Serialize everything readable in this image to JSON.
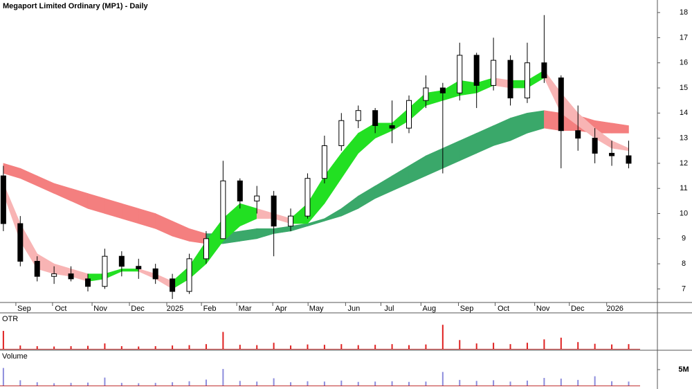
{
  "chart_data": [
    {
      "type": "candlestick",
      "title": "Megaport Limited Ordinary (MP1) - Daily",
      "open": [
        11.5,
        9.6,
        8.1,
        7.5,
        7.6,
        7.4,
        7.1,
        8.3,
        7.9,
        7.8,
        7.4,
        6.9,
        8.2,
        9.0,
        11.3,
        10.5,
        10.7,
        9.5,
        9.9,
        11.4,
        12.7,
        13.7,
        14.1,
        13.5,
        13.4,
        14.5,
        15.0,
        14.8,
        16.3,
        15.1,
        16.1,
        14.6,
        16.0,
        15.4,
        13.3,
        13.0,
        12.4,
        12.3
      ],
      "high": [
        11.9,
        9.9,
        8.3,
        7.9,
        7.9,
        7.6,
        8.6,
        8.5,
        8.2,
        8.0,
        7.6,
        8.4,
        9.3,
        12.1,
        11.4,
        11.1,
        10.9,
        10.2,
        11.6,
        13.1,
        14.0,
        14.3,
        14.2,
        14.5,
        14.7,
        15.5,
        15.2,
        16.8,
        16.4,
        17.0,
        16.3,
        16.8,
        17.9,
        15.5,
        14.3,
        13.4,
        12.9,
        12.9
      ],
      "low": [
        9.3,
        7.9,
        7.3,
        7.2,
        7.3,
        6.9,
        7.0,
        7.5,
        7.4,
        7.2,
        6.6,
        6.8,
        8.0,
        9.0,
        10.2,
        10.0,
        8.3,
        9.3,
        9.8,
        11.2,
        12.5,
        13.4,
        13.2,
        12.8,
        13.2,
        14.2,
        11.6,
        14.5,
        14.2,
        14.9,
        14.3,
        14.4,
        15.2,
        11.8,
        12.5,
        12.0,
        11.9,
        11.8
      ],
      "close": [
        9.6,
        8.1,
        7.5,
        7.6,
        7.4,
        7.1,
        8.3,
        7.9,
        7.8,
        7.4,
        6.9,
        8.2,
        9.0,
        11.3,
        10.5,
        10.7,
        9.5,
        9.9,
        11.4,
        12.7,
        13.7,
        14.1,
        13.5,
        13.4,
        14.5,
        15.0,
        14.8,
        16.3,
        15.1,
        16.1,
        14.6,
        16.0,
        15.4,
        13.3,
        13.0,
        12.4,
        12.3,
        12.0
      ],
      "up_color": "#ffffff",
      "down_color": "#000000",
      "bands": [
        {
          "upper": [
            12.0,
            11.8,
            11.5,
            11.2,
            11.0,
            10.8,
            10.6,
            10.4,
            10.2,
            10.0,
            9.7,
            9.4,
            9.2,
            9.2,
            9.3,
            9.4,
            9.4,
            9.5,
            9.6,
            9.8,
            10.2,
            10.7,
            11.1,
            11.5,
            11.9,
            12.3,
            12.6,
            12.9,
            13.2,
            13.5,
            13.8,
            14.0,
            14.1,
            14.0,
            13.9,
            13.7,
            13.6,
            13.5
          ],
          "lower": [
            11.6,
            11.4,
            11.1,
            10.8,
            10.5,
            10.2,
            10.0,
            9.8,
            9.6,
            9.4,
            9.1,
            8.9,
            8.8,
            8.8,
            8.9,
            9.0,
            9.2,
            9.3,
            9.5,
            9.7,
            9.9,
            10.2,
            10.6,
            10.9,
            11.2,
            11.5,
            11.8,
            12.1,
            12.4,
            12.7,
            12.9,
            13.2,
            13.4,
            13.3,
            13.3,
            13.2,
            13.2,
            13.2
          ],
          "rising_color": "#3aa86a",
          "falling_color": "#f47f7f"
        },
        {
          "upper": [
            11.2,
            9.6,
            8.4,
            8.0,
            7.8,
            7.6,
            7.6,
            7.8,
            7.8,
            7.6,
            7.3,
            7.9,
            8.9,
            9.8,
            10.4,
            10.2,
            10.0,
            9.8,
            10.4,
            11.5,
            12.4,
            13.2,
            13.6,
            13.6,
            14.2,
            14.8,
            14.9,
            15.3,
            15.2,
            15.4,
            15.3,
            15.3,
            15.7,
            14.8,
            14.0,
            13.4,
            12.9,
            12.6
          ],
          "lower": [
            10.8,
            8.9,
            7.8,
            7.6,
            7.5,
            7.3,
            7.4,
            7.7,
            7.7,
            7.4,
            7.0,
            7.4,
            8.0,
            8.9,
            9.5,
            9.8,
            9.8,
            9.6,
            9.6,
            10.4,
            11.4,
            12.4,
            13.0,
            13.3,
            13.7,
            14.3,
            14.5,
            14.7,
            14.8,
            15.1,
            15.0,
            15.0,
            15.4,
            14.0,
            13.5,
            13.0,
            12.6,
            12.5
          ],
          "rising_color": "#22e022",
          "falling_color": "#f8b4b4"
        }
      ],
      "xlim": [
        -0.2,
        38.7
      ],
      "xticks": [
        {
          "value": 1.23,
          "label": "Sep"
        },
        {
          "value": 3.4,
          "label": "Oct"
        },
        {
          "value": 5.74,
          "label": "Nov"
        },
        {
          "value": 7.95,
          "label": "Dec"
        },
        {
          "value": 10.16,
          "label": "2025"
        },
        {
          "value": 12.21,
          "label": "Feb"
        },
        {
          "value": 14.3,
          "label": "Mar"
        },
        {
          "value": 16.43,
          "label": "Apr"
        },
        {
          "value": 18.52,
          "label": "May"
        },
        {
          "value": 20.74,
          "label": "Jun"
        },
        {
          "value": 22.83,
          "label": "Jul"
        },
        {
          "value": 25.2,
          "label": "Aug"
        },
        {
          "value": 27.42,
          "label": "Sep"
        },
        {
          "value": 29.59,
          "label": "Oct"
        },
        {
          "value": 31.93,
          "label": "Nov"
        },
        {
          "value": 33.98,
          "label": "Dec"
        },
        {
          "value": 36.19,
          "label": "2026"
        }
      ],
      "ylim": [
        6.46,
        18.5
      ],
      "yticks": [
        7,
        8,
        9,
        10,
        11,
        12,
        13,
        14,
        15,
        16,
        17,
        18
      ]
    },
    {
      "type": "bar",
      "title": "OTR",
      "color": "#e02020",
      "title_color": "#e02020",
      "values": [
        5.5,
        1.2,
        1.0,
        0.9,
        1.0,
        1.1,
        1.8,
        1.0,
        0.9,
        1.0,
        1.2,
        1.3,
        1.6,
        5.2,
        1.4,
        1.3,
        2.0,
        1.2,
        1.5,
        1.4,
        1.6,
        1.3,
        1.4,
        1.6,
        1.3,
        1.5,
        7.3,
        2.8,
        1.8,
        2.0,
        1.6,
        2.0,
        3.0,
        3.5,
        2.2,
        1.7,
        1.5,
        1.6
      ],
      "xlim": [
        -0.2,
        38.7
      ],
      "ylim": [
        0,
        10
      ]
    },
    {
      "type": "bar",
      "title": "Volume",
      "color": "#8c8cdc",
      "title_color": "#8c8cdc",
      "values": [
        5500000,
        1800000,
        1200000,
        900000,
        1000000,
        1100000,
        2600000,
        1000000,
        900000,
        1000000,
        1200000,
        1500000,
        2000000,
        5200000,
        1600000,
        1400000,
        2400000,
        1200000,
        1500000,
        1400000,
        1700000,
        1300000,
        1400000,
        1500000,
        1300000,
        1400000,
        4300000,
        1900000,
        1600000,
        1800000,
        1400000,
        1700000,
        2500000,
        2300000,
        1900000,
        3000000,
        1500000,
        1400000
      ],
      "xlim": [
        -0.2,
        38.7
      ],
      "ylim": [
        0,
        10000000
      ],
      "yticks": [
        {
          "value": 5000000,
          "label": "5M"
        }
      ]
    }
  ]
}
